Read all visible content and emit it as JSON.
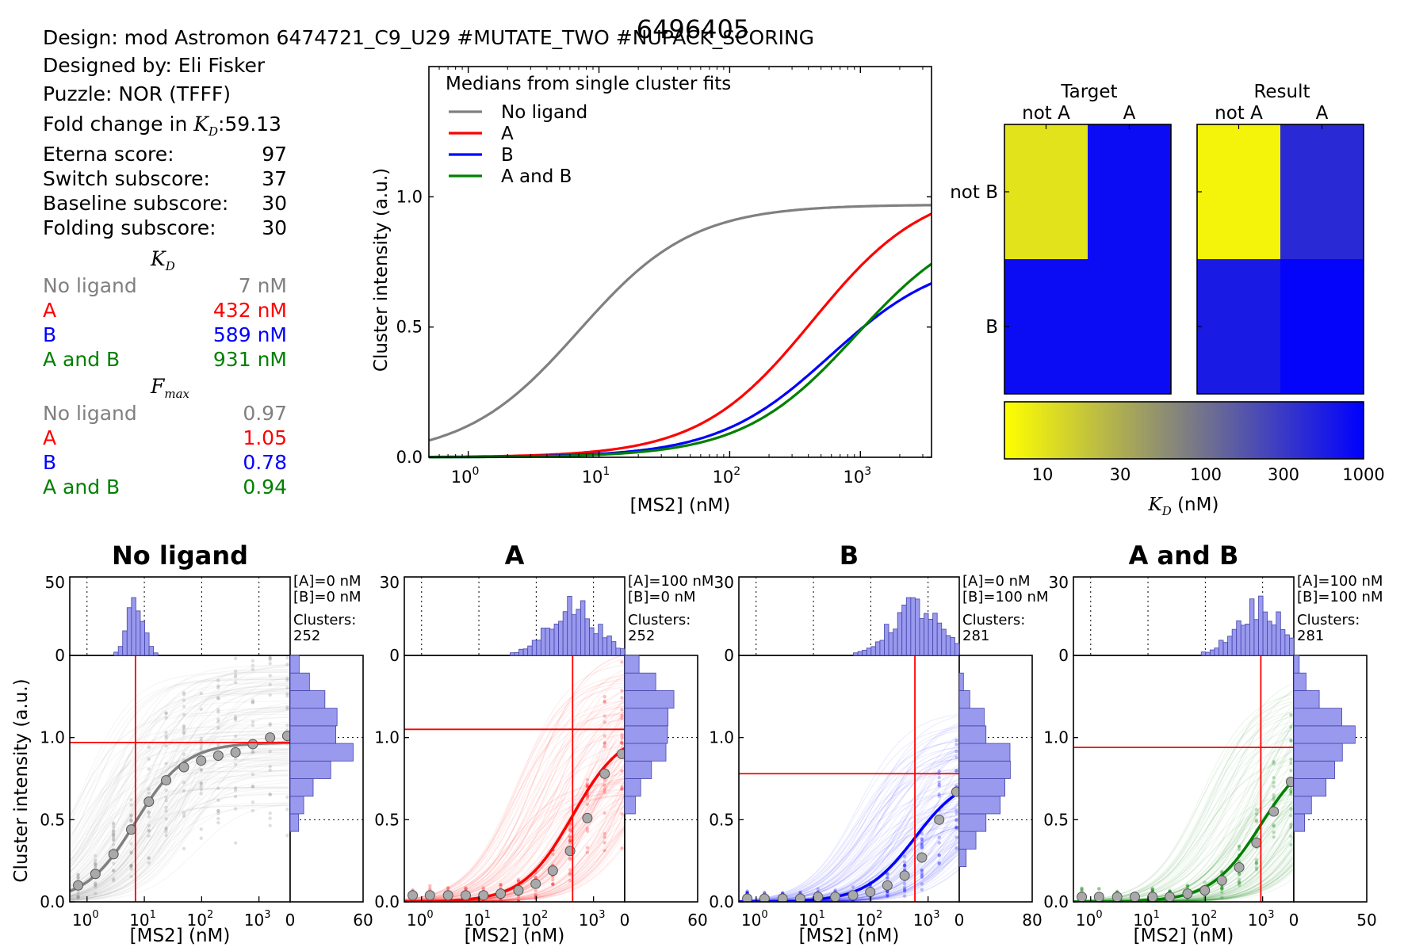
{
  "figure_id": "6496405",
  "info": {
    "design": "Design: mod Astromon 6474721_C9_U29 #MUTATE_TWO #NUPACK_SCORING",
    "designer": "Designed by: Eli Fisker",
    "puzzle": "Puzzle: NOR (TFFF)",
    "fold_change_label": "Fold change in",
    "fold_change_symbol": "K",
    "fold_change_sub": "D",
    "fold_change_value": ":59.13",
    "scores": [
      {
        "label": "Eterna score:",
        "value": "97"
      },
      {
        "label": "Switch subscore:",
        "value": "37"
      },
      {
        "label": "Baseline subscore:",
        "value": "30"
      },
      {
        "label": "Folding subscore:",
        "value": "30"
      }
    ],
    "kd_header_symbol": "K",
    "kd_header_sub": "D",
    "kd_rows": [
      {
        "label": "No ligand",
        "value": "7 nM",
        "color": "#808080"
      },
      {
        "label": "A",
        "value": "432 nM",
        "color": "#ff0000"
      },
      {
        "label": "B",
        "value": "589 nM",
        "color": "#0000ff"
      },
      {
        "label": "A and B",
        "value": "931 nM",
        "color": "#008000"
      }
    ],
    "fmax_header_symbol": "F",
    "fmax_header_sub": "max",
    "fmax_rows": [
      {
        "label": "No ligand",
        "value": "0.97",
        "color": "#808080"
      },
      {
        "label": "A",
        "value": "1.05",
        "color": "#ff0000"
      },
      {
        "label": "B",
        "value": "0.78",
        "color": "#0000ff"
      },
      {
        "label": "A and B",
        "value": "0.94",
        "color": "#008000"
      }
    ]
  },
  "chart_data": [
    {
      "type": "line",
      "id": "medians",
      "legend_title": "Medians from single cluster fits",
      "legend_placement": "top-left",
      "xlabel": "[MS2] (nM)",
      "ylabel": "Cluster intensity (a.u.)",
      "xscale": "log",
      "xlim": [
        0.5,
        3500
      ],
      "ylim": [
        0,
        1.5
      ],
      "yticks": [
        "0.0",
        "0.5",
        "1.0"
      ],
      "xticks": [
        "10",
        "10",
        "10",
        "10"
      ],
      "xtick_exps": [
        "0",
        "1",
        "2",
        "3"
      ],
      "series": [
        {
          "name": "No ligand",
          "color": "#808080",
          "kd": 7,
          "fmax": 0.97
        },
        {
          "name": "A",
          "color": "#ff0000",
          "kd": 432,
          "fmax": 1.05
        },
        {
          "name": "B",
          "color": "#0000ff",
          "kd": 589,
          "fmax": 0.78
        },
        {
          "name": "A and B",
          "color": "#008000",
          "kd": 931,
          "fmax": 0.94
        }
      ]
    },
    {
      "type": "heatmap",
      "id": "target-result",
      "panels": [
        {
          "title": "Target",
          "cells": [
            [
              10,
              800
            ],
            [
              800,
              800
            ]
          ]
        },
        {
          "title": "Result",
          "cells": [
            [
              7,
              432
            ],
            [
              589,
              931
            ]
          ]
        }
      ],
      "col_labels": [
        "not A",
        "A"
      ],
      "row_labels": [
        "not B",
        "B"
      ],
      "colorbar_ticks": [
        "10",
        "30",
        "100",
        "300",
        "1000"
      ],
      "colorbar_xlabel_symbol": "K",
      "colorbar_xlabel_sub": "D",
      "colorbar_xlabel_unit": " (nM)",
      "colormap": [
        "#ffff00",
        "#808080",
        "#0000ff"
      ]
    },
    {
      "type": "scatter",
      "id": "single-cluster-panels",
      "xlabel": "[MS2] (nM)",
      "ylabel": "Cluster intensity (a.u.)",
      "xlim": [
        0.5,
        3500
      ],
      "ylim": [
        0,
        1.5
      ],
      "yticks": [
        "0.0",
        "0.5",
        "1.0"
      ],
      "xticks": [
        "10",
        "10",
        "10",
        "10"
      ],
      "xtick_exps": [
        "0",
        "1",
        "2",
        "3"
      ],
      "concentrations": [
        0.7,
        1.4,
        2.9,
        5.9,
        12,
        24,
        49,
        98,
        195,
        390,
        781,
        1563,
        3125
      ],
      "panels": [
        {
          "title": "No ligand",
          "color": "#808080",
          "kd": 7,
          "fmax": 0.97,
          "conc_a": "[A]=0 nM",
          "conc_b": "[B]=0 nM",
          "clusters_label": "Clusters:",
          "clusters": "252",
          "hist_top_ymax": "50",
          "hist_right_xmax": "60",
          "medians": [
            0.1,
            0.17,
            0.29,
            0.44,
            0.61,
            0.74,
            0.82,
            0.86,
            0.89,
            0.91,
            0.96,
            1.0,
            1.01
          ]
        },
        {
          "title": "A",
          "color": "#ff0000",
          "kd": 432,
          "fmax": 1.05,
          "conc_a": "[A]=100 nM",
          "conc_b": "[B]=0 nM",
          "clusters_label": "Clusters:",
          "clusters": "252",
          "hist_top_ymax": "30",
          "hist_right_xmax": "60",
          "medians": [
            0.04,
            0.04,
            0.04,
            0.04,
            0.04,
            0.05,
            0.07,
            0.11,
            0.19,
            0.31,
            0.51,
            0.78,
            0.9
          ]
        },
        {
          "title": "B",
          "color": "#0000ff",
          "kd": 589,
          "fmax": 0.78,
          "conc_a": "[A]=0 nM",
          "conc_b": "[B]=100 nM",
          "clusters_label": "Clusters:",
          "clusters": "281",
          "hist_top_ymax": "30",
          "hist_right_xmax": "80",
          "medians": [
            0.02,
            0.02,
            0.02,
            0.02,
            0.03,
            0.03,
            0.04,
            0.06,
            0.1,
            0.16,
            0.27,
            0.5,
            0.67
          ]
        },
        {
          "title": "A and B",
          "color": "#008000",
          "kd": 931,
          "fmax": 0.94,
          "conc_a": "[A]=100 nM",
          "conc_b": "[B]=100 nM",
          "clusters_label": "Clusters:",
          "clusters": "281",
          "hist_top_ymax": "30",
          "hist_right_xmax": "50",
          "medians": [
            0.03,
            0.03,
            0.03,
            0.03,
            0.03,
            0.03,
            0.05,
            0.07,
            0.13,
            0.21,
            0.36,
            0.55,
            0.73
          ]
        }
      ]
    }
  ]
}
